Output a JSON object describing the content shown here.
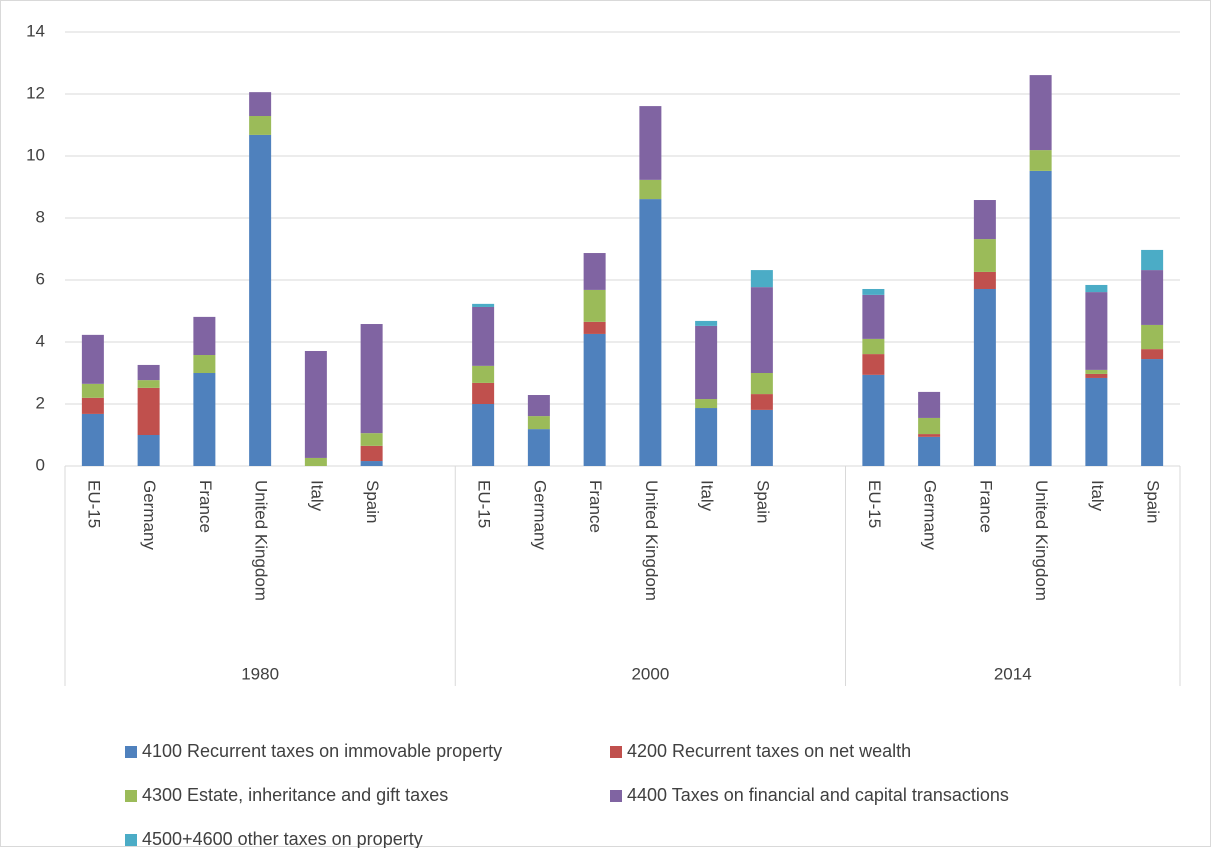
{
  "chart_data": {
    "type": "stacked_bar",
    "groups": [
      "1980",
      "2000",
      "2014"
    ],
    "categories": [
      "EU-15",
      "Germany",
      "France",
      "United Kingdom",
      "Italy",
      "Spain",
      "EU-15",
      "Germany",
      "France",
      "United Kingdom",
      "Italy",
      "Spain",
      "EU-15",
      "Germany",
      "France",
      "United Kingdom",
      "Italy",
      "Spain"
    ],
    "series": [
      {
        "name": "4100 Recurrent taxes on immovable property",
        "color": "#4f81bd",
        "values": [
          1.68,
          1.0,
          3.0,
          10.68,
          0,
          0.16,
          2.0,
          1.19,
          4.26,
          8.61,
          1.87,
          1.81,
          2.94,
          0.94,
          5.71,
          9.52,
          2.84,
          3.45
        ]
      },
      {
        "name": "4200 Recurrent taxes on net wealth",
        "color": "#c0504d",
        "values": [
          0.52,
          1.52,
          0,
          0,
          0,
          0.49,
          0.68,
          0,
          0.39,
          0,
          0,
          0.51,
          0.67,
          0.09,
          0.55,
          0,
          0.13,
          0.32
        ]
      },
      {
        "name": "4300 Estate, inheritance and gift taxes",
        "color": "#9bbb59",
        "values": [
          0.45,
          0.25,
          0.58,
          0.61,
          0.26,
          0.41,
          0.55,
          0.42,
          1.03,
          0.62,
          0.29,
          0.68,
          0.49,
          0.52,
          1.06,
          0.67,
          0.13,
          0.78
        ]
      },
      {
        "name": "4400 Taxes on financial and capital transactions",
        "color": "#8064a2",
        "values": [
          1.58,
          0.49,
          1.23,
          0.77,
          3.45,
          3.52,
          1.9,
          0.68,
          1.19,
          2.38,
          2.36,
          2.77,
          1.42,
          0.84,
          1.26,
          2.42,
          2.51,
          1.77
        ]
      },
      {
        "name": "4500+4600 other taxes on property",
        "color": "#4bacc6",
        "values": [
          0,
          0,
          0,
          0,
          0,
          0,
          0.1,
          0,
          0,
          0,
          0.16,
          0.55,
          0.19,
          0,
          0,
          0,
          0.23,
          0.65
        ]
      }
    ],
    "ylim": [
      0,
      14
    ],
    "yticks": [
      0,
      2,
      4,
      6,
      8,
      10,
      12,
      14
    ],
    "grid": true
  }
}
